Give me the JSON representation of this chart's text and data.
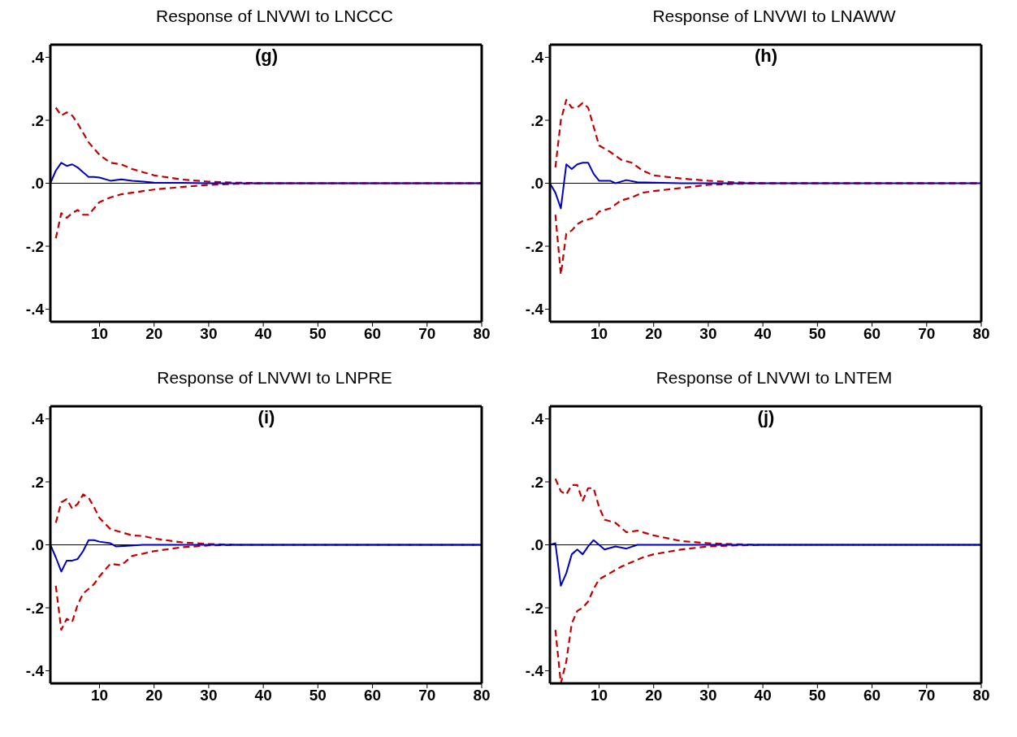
{
  "chart_data": [
    {
      "type": "line",
      "title": "Response of LNVWI to LNCCC",
      "annotations": [
        "(g)"
      ],
      "xlim": [
        1,
        80
      ],
      "xticks": [
        10,
        20,
        30,
        40,
        50,
        60,
        70,
        80
      ],
      "ylim": [
        -0.44,
        0.44
      ],
      "yticks": [
        {
          "value": -0.4,
          "label": "-.4"
        },
        {
          "value": -0.2,
          "label": "-.2"
        },
        {
          "value": 0,
          "label": ".0"
        },
        {
          "value": 0.2,
          "label": ".2"
        },
        {
          "value": 0.4,
          "label": ".4"
        }
      ],
      "ref_lines": [
        {
          "axis": "y",
          "value": 0,
          "color": "#000000"
        }
      ],
      "series": [
        {
          "color": "#c00000",
          "line_style": "dashed",
          "x": [
            2,
            3,
            4,
            5,
            6,
            7,
            8,
            9,
            10,
            12,
            14,
            16,
            18,
            20,
            25,
            30,
            35,
            40,
            80
          ],
          "values": [
            0.24,
            0.215,
            0.225,
            0.215,
            0.19,
            0.16,
            0.13,
            0.11,
            0.09,
            0.065,
            0.06,
            0.045,
            0.035,
            0.025,
            0.012,
            0.005,
            0.002,
            0,
            0
          ]
        },
        {
          "color": "#c00000",
          "line_style": "dashed",
          "x": [
            2,
            3,
            4,
            5,
            6,
            7,
            8,
            9,
            10,
            12,
            14,
            16,
            18,
            20,
            25,
            30,
            35,
            40,
            80
          ],
          "values": [
            -0.175,
            -0.095,
            -0.11,
            -0.095,
            -0.085,
            -0.1,
            -0.1,
            -0.08,
            -0.06,
            -0.045,
            -0.035,
            -0.03,
            -0.025,
            -0.02,
            -0.012,
            -0.005,
            -0.002,
            0,
            0
          ]
        },
        {
          "color": "#0000c0",
          "line_style": "solid",
          "x": [
            1,
            2,
            3,
            4,
            5,
            6,
            7,
            8,
            9,
            10,
            12,
            14,
            16,
            18,
            20,
            25,
            30,
            80
          ],
          "values": [
            0,
            0.04,
            0.065,
            0.055,
            0.06,
            0.05,
            0.035,
            0.02,
            0.02,
            0.018,
            0.008,
            0.012,
            0.008,
            0.005,
            0.002,
            0.001,
            0,
            0
          ]
        }
      ]
    },
    {
      "type": "line",
      "title": "Response of LNVWI to LNAWW",
      "annotations": [
        "(h)"
      ],
      "xlim": [
        1,
        80
      ],
      "xticks": [
        10,
        20,
        30,
        40,
        50,
        60,
        70,
        80
      ],
      "ylim": [
        -0.44,
        0.44
      ],
      "yticks": [
        {
          "value": -0.4,
          "label": "-.4"
        },
        {
          "value": -0.2,
          "label": "-.2"
        },
        {
          "value": 0,
          "label": ".0"
        },
        {
          "value": 0.2,
          "label": ".2"
        },
        {
          "value": 0.4,
          "label": ".4"
        }
      ],
      "ref_lines": [
        {
          "axis": "y",
          "value": 0,
          "color": "#000000"
        }
      ],
      "series": [
        {
          "color": "#c00000",
          "line_style": "dashed",
          "x": [
            2,
            3,
            4,
            5,
            6,
            7,
            8,
            9,
            10,
            12,
            14,
            16,
            18,
            20,
            25,
            30,
            35,
            40,
            80
          ],
          "values": [
            0.05,
            0.2,
            0.265,
            0.24,
            0.24,
            0.255,
            0.24,
            0.18,
            0.12,
            0.1,
            0.075,
            0.065,
            0.04,
            0.025,
            0.015,
            0.008,
            0.003,
            0,
            0
          ]
        },
        {
          "color": "#c00000",
          "line_style": "dashed",
          "x": [
            2,
            3,
            4,
            5,
            6,
            7,
            8,
            9,
            10,
            12,
            14,
            16,
            18,
            20,
            25,
            30,
            35,
            40,
            80
          ],
          "values": [
            -0.1,
            -0.29,
            -0.16,
            -0.15,
            -0.13,
            -0.12,
            -0.115,
            -0.11,
            -0.09,
            -0.08,
            -0.055,
            -0.045,
            -0.03,
            -0.025,
            -0.015,
            -0.005,
            -0.002,
            0,
            0
          ]
        },
        {
          "color": "#0000c0",
          "line_style": "solid",
          "x": [
            1,
            2,
            3,
            4,
            5,
            6,
            7,
            8,
            9,
            10,
            12,
            13,
            15,
            17,
            20,
            25,
            80
          ],
          "values": [
            0,
            -0.03,
            -0.08,
            0.06,
            0.045,
            0.06,
            0.065,
            0.065,
            0.03,
            0.008,
            0.008,
            0,
            0.01,
            0.003,
            0.002,
            0,
            0
          ]
        }
      ]
    },
    {
      "type": "line",
      "title": "Response of LNVWI to LNPRE",
      "annotations": [
        "(i)"
      ],
      "xlim": [
        1,
        80
      ],
      "xticks": [
        10,
        20,
        30,
        40,
        50,
        60,
        70,
        80
      ],
      "ylim": [
        -0.44,
        0.44
      ],
      "yticks": [
        {
          "value": -0.4,
          "label": "-.4"
        },
        {
          "value": -0.2,
          "label": "-.2"
        },
        {
          "value": 0,
          "label": ".0"
        },
        {
          "value": 0.2,
          "label": ".2"
        },
        {
          "value": 0.4,
          "label": ".4"
        }
      ],
      "ref_lines": [
        {
          "axis": "y",
          "value": 0,
          "color": "#000000"
        }
      ],
      "series": [
        {
          "color": "#c00000",
          "line_style": "dashed",
          "x": [
            2,
            3,
            4,
            5,
            6,
            7,
            8,
            9,
            10,
            12,
            14,
            16,
            18,
            20,
            25,
            30,
            35,
            80
          ],
          "values": [
            0.07,
            0.135,
            0.145,
            0.115,
            0.13,
            0.16,
            0.15,
            0.12,
            0.085,
            0.05,
            0.04,
            0.03,
            0.028,
            0.02,
            0.008,
            0.003,
            0,
            0
          ]
        },
        {
          "color": "#c00000",
          "line_style": "dashed",
          "x": [
            2,
            3,
            4,
            5,
            6,
            7,
            8,
            9,
            10,
            12,
            14,
            16,
            18,
            20,
            25,
            30,
            35,
            80
          ],
          "values": [
            -0.13,
            -0.27,
            -0.235,
            -0.245,
            -0.19,
            -0.155,
            -0.14,
            -0.125,
            -0.1,
            -0.06,
            -0.065,
            -0.035,
            -0.028,
            -0.02,
            -0.008,
            -0.002,
            0,
            0
          ]
        },
        {
          "color": "#0000c0",
          "line_style": "solid",
          "x": [
            1,
            2,
            3,
            4,
            5,
            6,
            7,
            8,
            9,
            10,
            12,
            13,
            15,
            18,
            25,
            80
          ],
          "values": [
            0,
            -0.04,
            -0.085,
            -0.05,
            -0.05,
            -0.045,
            -0.02,
            0.015,
            0.015,
            0.01,
            0.005,
            -0.005,
            -0.003,
            0,
            0,
            0
          ]
        }
      ]
    },
    {
      "type": "line",
      "title": "Response of LNVWI to LNTEM",
      "annotations": [
        "(j)"
      ],
      "xlim": [
        1,
        80
      ],
      "xticks": [
        10,
        20,
        30,
        40,
        50,
        60,
        70,
        80
      ],
      "ylim": [
        -0.44,
        0.44
      ],
      "yticks": [
        {
          "value": -0.4,
          "label": "-.4"
        },
        {
          "value": -0.2,
          "label": "-.2"
        },
        {
          "value": 0,
          "label": ".0"
        },
        {
          "value": 0.2,
          "label": ".2"
        },
        {
          "value": 0.4,
          "label": ".4"
        }
      ],
      "ref_lines": [
        {
          "axis": "y",
          "value": 0,
          "color": "#000000"
        }
      ],
      "series": [
        {
          "color": "#c00000",
          "line_style": "dashed",
          "x": [
            2,
            3,
            4,
            5,
            6,
            7,
            8,
            9,
            10,
            11,
            13,
            15,
            17,
            20,
            25,
            30,
            35,
            40,
            80
          ],
          "values": [
            0.21,
            0.17,
            0.16,
            0.19,
            0.19,
            0.14,
            0.18,
            0.18,
            0.12,
            0.08,
            0.07,
            0.04,
            0.045,
            0.03,
            0.012,
            0.005,
            0.002,
            0,
            0
          ]
        },
        {
          "color": "#c00000",
          "line_style": "dashed",
          "x": [
            2,
            3,
            4,
            5,
            6,
            7,
            8,
            9,
            10,
            12,
            14,
            16,
            18,
            20,
            25,
            30,
            35,
            40,
            80
          ],
          "values": [
            -0.27,
            -0.44,
            -0.37,
            -0.25,
            -0.21,
            -0.2,
            -0.18,
            -0.14,
            -0.11,
            -0.09,
            -0.07,
            -0.055,
            -0.04,
            -0.03,
            -0.015,
            -0.005,
            -0.002,
            0,
            0
          ]
        },
        {
          "color": "#0000c0",
          "line_style": "solid",
          "x": [
            1,
            2,
            3,
            4,
            5,
            6,
            7,
            8,
            9,
            10,
            11,
            13,
            15,
            17,
            20,
            25,
            80
          ],
          "values": [
            0,
            0.005,
            -0.13,
            -0.09,
            -0.03,
            -0.015,
            -0.03,
            -0.005,
            0.015,
            0,
            -0.015,
            -0.005,
            -0.012,
            0,
            0,
            0,
            0
          ]
        }
      ]
    }
  ]
}
